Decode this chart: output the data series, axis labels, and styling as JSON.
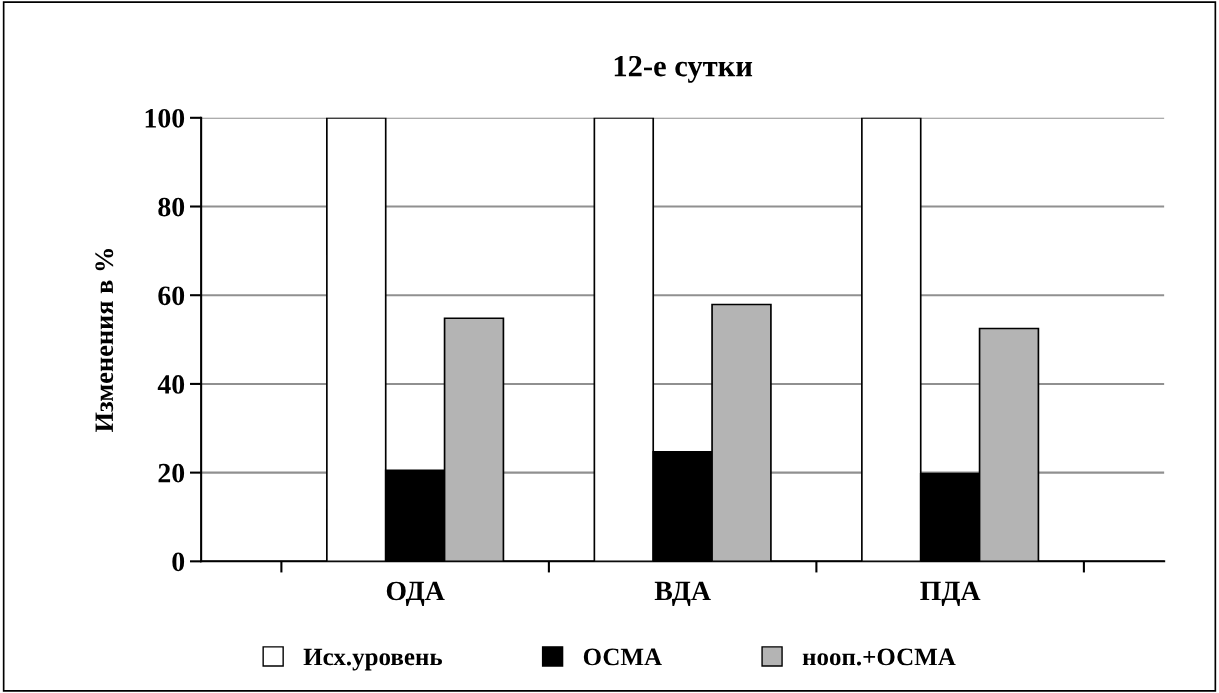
{
  "chart_data": {
    "type": "bar",
    "title": "12-е сутки",
    "ylabel": "Изменения в %",
    "categories": [
      "ОДА",
      "ВДА",
      "ПДА"
    ],
    "series": [
      {
        "name": "Исх.уровень",
        "color": "#ffffff",
        "values": [
          100,
          100,
          100
        ]
      },
      {
        "name": "ОСМА",
        "color": "#000000",
        "values": [
          20.5,
          24.7,
          19.8
        ]
      },
      {
        "name": "нооп.+ОСМА",
        "color": "#b4b4b4",
        "values": [
          54.8,
          57.9,
          52.5
        ]
      }
    ],
    "ylim": [
      0,
      100
    ],
    "yticks": [
      0,
      20,
      40,
      60,
      80,
      100
    ],
    "grid": "y",
    "legend": "bottom"
  }
}
